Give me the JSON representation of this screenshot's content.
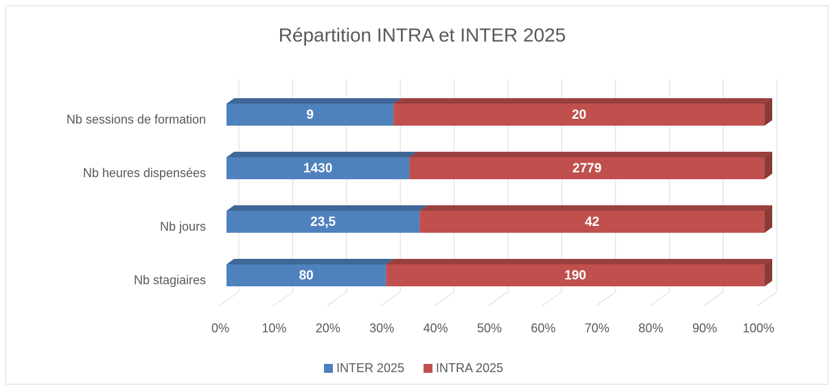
{
  "chart_data": {
    "type": "bar",
    "orientation": "horizontal",
    "stacking": "percent",
    "title": "Répartition INTRA et INTER 2025",
    "categories": [
      "Nb sessions de formation",
      "Nb heures dispensées",
      "Nb jours",
      "Nb stagiaires"
    ],
    "series": [
      {
        "name": "INTER 2025",
        "color": "#4f81bd",
        "values": [
          9,
          1430,
          23.5,
          80
        ],
        "value_labels": [
          "9",
          "1430",
          "23,5",
          "80"
        ]
      },
      {
        "name": "INTRA 2025",
        "color": "#c0504d",
        "values": [
          20,
          2779,
          42,
          190
        ]
      }
    ],
    "xlim": [
      0,
      100
    ],
    "xticks": [
      {
        "value": 0,
        "label": "0%"
      },
      {
        "value": 10,
        "label": "10%"
      },
      {
        "value": 20,
        "label": "20%"
      },
      {
        "value": 30,
        "label": "30%"
      },
      {
        "value": 40,
        "label": "40%"
      },
      {
        "value": 50,
        "label": "50%"
      },
      {
        "value": 60,
        "label": "60%"
      },
      {
        "value": 70,
        "label": "70%"
      },
      {
        "value": 80,
        "label": "80%"
      },
      {
        "value": 90,
        "label": "90%"
      },
      {
        "value": 100,
        "label": "100%"
      }
    ],
    "grid": true,
    "legend": "bottom"
  }
}
